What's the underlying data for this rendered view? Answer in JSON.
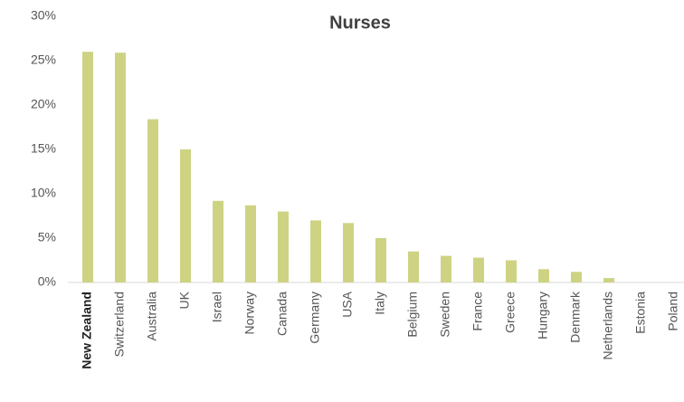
{
  "chart_data": {
    "type": "bar",
    "title": "Nurses",
    "categories": [
      "New Zealand",
      "Switzerland",
      "Australia",
      "UK",
      "Israel",
      "Norway",
      "Canada",
      "Germany",
      "USA",
      "Italy",
      "Belgium",
      "Sweden",
      "France",
      "Greece",
      "Hungary",
      "Denmark",
      "Netherlands",
      "Estonia",
      "Poland"
    ],
    "values": [
      26,
      25.9,
      18.4,
      15,
      9.2,
      8.7,
      8,
      7,
      6.7,
      5,
      3.5,
      3,
      2.8,
      2.5,
      1.5,
      1.2,
      0.5,
      0,
      0
    ],
    "color": "#cdd383",
    "highlight_index": 0,
    "ylim": [
      0,
      30
    ],
    "yticks": [
      {
        "value": 0,
        "label": "0%"
      },
      {
        "value": 5,
        "label": "5%"
      },
      {
        "value": 10,
        "label": "10%"
      },
      {
        "value": 15,
        "label": "15%"
      },
      {
        "value": 20,
        "label": "20%"
      },
      {
        "value": 25,
        "label": "25%"
      },
      {
        "value": 30,
        "label": "30%"
      }
    ],
    "grid": false
  }
}
